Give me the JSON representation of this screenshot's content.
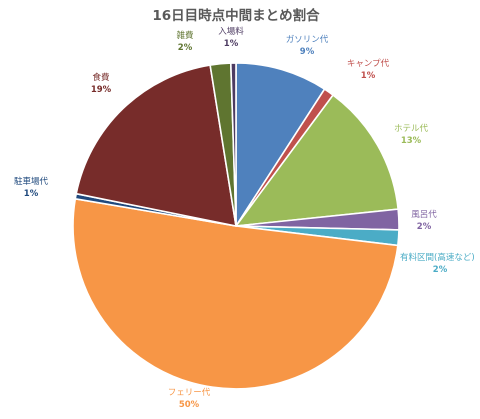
{
  "chart_data": {
    "type": "pie",
    "title": "16日目時点中間まとめ割合",
    "legend": "none",
    "slices": [
      {
        "label": "ガソリン代",
        "value": 9,
        "display": "9%",
        "color": "#4F81BD"
      },
      {
        "label": "キャンプ代",
        "value": 1,
        "display": "1%",
        "color": "#C0504D"
      },
      {
        "label": "ホテル代",
        "value": 13,
        "display": "13%",
        "color": "#9BBB59"
      },
      {
        "label": "風呂代",
        "value": 2,
        "display": "2%",
        "color": "#8064A2"
      },
      {
        "label": "有料区間(高速など)",
        "value": 1.5,
        "display": "2%",
        "color": "#4BACC6"
      },
      {
        "label": "フェリー代",
        "value": 50,
        "display": "50%",
        "color": "#F79646"
      },
      {
        "label": "駐車場代",
        "value": 0.5,
        "display": "1%",
        "color": "#1F497D"
      },
      {
        "label": "食費",
        "value": 19,
        "display": "19%",
        "color": "#772C2A"
      },
      {
        "label": "雑費",
        "value": 2,
        "display": "2%",
        "color": "#5F7530"
      },
      {
        "label": "入場料",
        "value": 0.5,
        "display": "1%",
        "color": "#4D3B62"
      }
    ]
  }
}
